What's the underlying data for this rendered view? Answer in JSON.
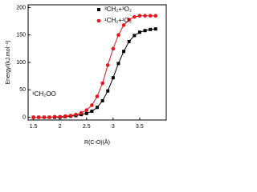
{
  "chart_data": {
    "type": "line",
    "y_label": "Energy/(kJ.mol⁻¹)",
    "x_label": "R(C-O)(Å)",
    "annotation": "¹CH₂OO",
    "x": [
      1.5,
      1.6,
      1.7,
      1.8,
      1.9,
      2.0,
      2.1,
      2.2,
      2.3,
      2.4,
      2.5,
      2.6,
      2.7,
      2.8,
      2.9,
      3.0,
      3.1,
      3.2,
      3.3,
      3.4,
      3.5,
      3.6,
      3.7,
      3.8
    ],
    "series": [
      {
        "name": "³CH₂+³O₂",
        "color": "#000000",
        "marker": "square",
        "values": [
          0,
          0,
          0,
          0,
          0,
          0,
          1,
          2,
          3,
          5,
          7,
          11,
          18,
          30,
          48,
          72,
          98,
          120,
          138,
          149,
          155,
          158,
          160,
          161
        ]
      },
      {
        "name": "¹CH₂+¹O₂",
        "color": "#e8141c",
        "marker": "circle",
        "values": [
          0,
          0,
          0,
          0,
          1,
          1,
          2,
          3,
          5,
          8,
          13,
          22,
          38,
          62,
          95,
          125,
          150,
          168,
          178,
          183,
          185,
          185,
          185,
          185
        ]
      }
    ],
    "xlim": [
      1.4,
      4.0
    ],
    "xticks": [
      1.5,
      2.0,
      2.5,
      3.0,
      3.5
    ],
    "ylim": [
      -5,
      205
    ],
    "yticks": [
      0,
      50,
      100,
      150,
      200
    ],
    "grid": false,
    "legend": "top-right"
  }
}
